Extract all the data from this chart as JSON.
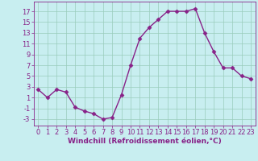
{
  "x": [
    0,
    1,
    2,
    3,
    4,
    5,
    6,
    7,
    8,
    9,
    10,
    11,
    12,
    13,
    14,
    15,
    16,
    17,
    18,
    19,
    20,
    21,
    22,
    23
  ],
  "y": [
    2.5,
    1.0,
    2.5,
    2.0,
    -0.8,
    -1.5,
    -2.0,
    -3.0,
    -2.7,
    1.5,
    7.0,
    12.0,
    14.0,
    15.5,
    17.0,
    17.0,
    17.0,
    17.5,
    13.0,
    9.5,
    6.5,
    6.5,
    5.0,
    4.5
  ],
  "line_color": "#882288",
  "marker": "D",
  "markersize": 2.5,
  "linewidth": 1.0,
  "bg_color": "#c8eef0",
  "grid_color": "#99ccbb",
  "xlabel": "Windchill (Refroidissement éolien,°C)",
  "xlabel_fontsize": 6.5,
  "tick_fontsize": 6,
  "xlim": [
    -0.5,
    23.5
  ],
  "ylim": [
    -4.2,
    18.8
  ],
  "yticks": [
    -3,
    -1,
    1,
    3,
    5,
    7,
    9,
    11,
    13,
    15,
    17
  ],
  "xticks": [
    0,
    1,
    2,
    3,
    4,
    5,
    6,
    7,
    8,
    9,
    10,
    11,
    12,
    13,
    14,
    15,
    16,
    17,
    18,
    19,
    20,
    21,
    22,
    23
  ]
}
